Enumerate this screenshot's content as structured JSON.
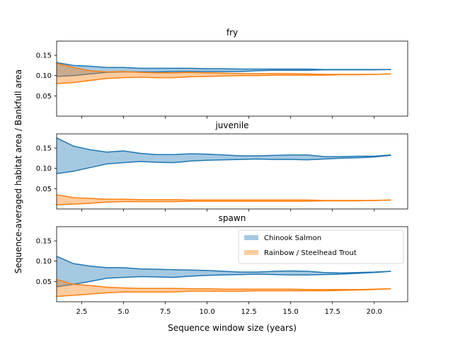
{
  "chart_data": {
    "type": "area",
    "xlabel": "Sequence window size (years)",
    "ylabel": "Sequence-averaged habitat area / Bankfull area",
    "xlim": [
      1,
      22
    ],
    "ylim": [
      0,
      0.185
    ],
    "xticks": [
      2.5,
      5.0,
      7.5,
      10.0,
      12.5,
      15.0,
      17.5,
      20.0
    ],
    "xtick_labels": [
      "2.5",
      "5.0",
      "7.5",
      "10.0",
      "12.5",
      "15.0",
      "17.5",
      "20.0"
    ],
    "yticks": [
      0.05,
      0.1,
      0.15
    ],
    "ytick_labels": [
      "0.05",
      "0.10",
      "0.15"
    ],
    "shared_x": true,
    "legend": {
      "placement": "upper right",
      "panel": "spawn"
    },
    "colors": {
      "chinook": "#1f77b4",
      "trout": "#ff7f0e"
    },
    "x": [
      1,
      2,
      3,
      4,
      5,
      6,
      7,
      8,
      9,
      10,
      11,
      12,
      13,
      14,
      15,
      16,
      17,
      18,
      19,
      20,
      21
    ],
    "panels": [
      {
        "title": "fry",
        "series": [
          {
            "name": "Chinook Salmon",
            "color": "#1f77b4",
            "upper": [
              0.132,
              0.125,
              0.123,
              0.12,
              0.12,
              0.118,
              0.118,
              0.118,
              0.118,
              0.117,
              0.117,
              0.116,
              0.116,
              0.116,
              0.116,
              0.116,
              0.115,
              0.115,
              0.115,
              0.115,
              0.115
            ],
            "lower": [
              0.098,
              0.1,
              0.104,
              0.108,
              0.109,
              0.109,
              0.109,
              0.11,
              0.11,
              0.11,
              0.11,
              0.11,
              0.112,
              0.113,
              0.113,
              0.113,
              0.114,
              0.114,
              0.114,
              0.114,
              0.115
            ]
          },
          {
            "name": "Rainbow / Steelhead Trout",
            "color": "#ff7f0e",
            "upper": [
              0.13,
              0.12,
              0.112,
              0.109,
              0.11,
              0.108,
              0.107,
              0.107,
              0.108,
              0.107,
              0.106,
              0.105,
              0.105,
              0.105,
              0.105,
              0.104,
              0.103,
              0.103,
              0.103,
              0.103,
              0.104
            ],
            "lower": [
              0.08,
              0.083,
              0.088,
              0.093,
              0.095,
              0.096,
              0.095,
              0.095,
              0.097,
              0.098,
              0.099,
              0.1,
              0.1,
              0.101,
              0.101,
              0.101,
              0.101,
              0.102,
              0.102,
              0.103,
              0.104
            ]
          }
        ]
      },
      {
        "title": "juvenile",
        "series": [
          {
            "name": "Chinook Salmon",
            "color": "#1f77b4",
            "upper": [
              0.175,
              0.155,
              0.146,
              0.14,
              0.143,
              0.137,
              0.134,
              0.134,
              0.136,
              0.135,
              0.133,
              0.131,
              0.131,
              0.132,
              0.133,
              0.133,
              0.129,
              0.129,
              0.13,
              0.13,
              0.133
            ],
            "lower": [
              0.087,
              0.093,
              0.102,
              0.111,
              0.114,
              0.117,
              0.115,
              0.114,
              0.118,
              0.12,
              0.121,
              0.122,
              0.123,
              0.122,
              0.122,
              0.121,
              0.123,
              0.125,
              0.126,
              0.128,
              0.132
            ]
          },
          {
            "name": "Rainbow / Steelhead Trout",
            "color": "#ff7f0e",
            "upper": [
              0.035,
              0.028,
              0.026,
              0.024,
              0.024,
              0.023,
              0.023,
              0.023,
              0.022,
              0.022,
              0.022,
              0.022,
              0.022,
              0.022,
              0.022,
              0.022,
              0.021,
              0.021,
              0.021,
              0.021,
              0.022
            ],
            "lower": [
              0.01,
              0.012,
              0.014,
              0.017,
              0.018,
              0.018,
              0.018,
              0.018,
              0.019,
              0.019,
              0.019,
              0.019,
              0.019,
              0.019,
              0.019,
              0.019,
              0.02,
              0.02,
              0.02,
              0.021,
              0.022
            ]
          }
        ]
      },
      {
        "title": "spawn",
        "series": [
          {
            "name": "Chinook Salmon",
            "color": "#1f77b4",
            "upper": [
              0.112,
              0.094,
              0.088,
              0.084,
              0.084,
              0.081,
              0.08,
              0.079,
              0.078,
              0.077,
              0.075,
              0.073,
              0.073,
              0.075,
              0.076,
              0.075,
              0.072,
              0.071,
              0.072,
              0.073,
              0.075
            ],
            "lower": [
              0.037,
              0.043,
              0.05,
              0.058,
              0.06,
              0.062,
              0.061,
              0.06,
              0.063,
              0.065,
              0.066,
              0.067,
              0.068,
              0.067,
              0.066,
              0.066,
              0.067,
              0.068,
              0.07,
              0.072,
              0.075
            ]
          },
          {
            "name": "Rainbow / Steelhead Trout",
            "color": "#ff7f0e",
            "upper": [
              0.055,
              0.043,
              0.04,
              0.036,
              0.034,
              0.033,
              0.033,
              0.033,
              0.032,
              0.032,
              0.031,
              0.031,
              0.031,
              0.031,
              0.031,
              0.03,
              0.03,
              0.03,
              0.03,
              0.031,
              0.032
            ],
            "lower": [
              0.013,
              0.016,
              0.019,
              0.022,
              0.024,
              0.024,
              0.024,
              0.024,
              0.026,
              0.026,
              0.026,
              0.026,
              0.027,
              0.027,
              0.027,
              0.027,
              0.027,
              0.028,
              0.029,
              0.03,
              0.032
            ]
          }
        ]
      }
    ]
  }
}
